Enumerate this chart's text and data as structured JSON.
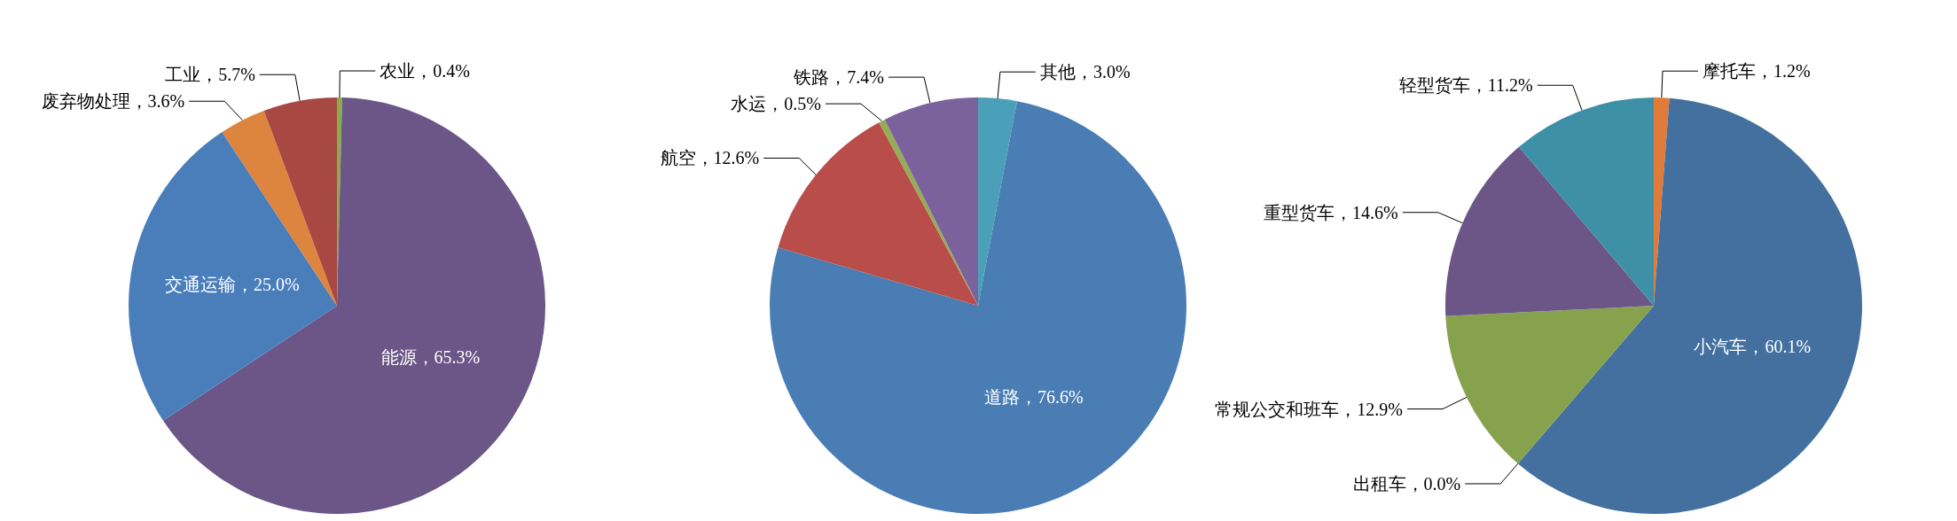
{
  "chart_data": [
    {
      "type": "pie",
      "categories": [
        "农业",
        "能源",
        "交通运输",
        "废弃物处理",
        "工业"
      ],
      "values": [
        0.4,
        65.3,
        25.0,
        3.6,
        5.7
      ],
      "colors": [
        "#8aac4a",
        "#6b5687",
        "#4a7ebb",
        "#dd843f",
        "#a84843"
      ],
      "value_labels": [
        "0.4%",
        "65.3%",
        "25.0%",
        "3.6%",
        "5.7%"
      ]
    },
    {
      "type": "pie",
      "categories": [
        "其他",
        "道路",
        "航空",
        "水运",
        "铁路"
      ],
      "values": [
        3.0,
        76.6,
        12.6,
        0.5,
        7.4
      ],
      "colors": [
        "#4aa0b8",
        "#4a7db4",
        "#b94d49",
        "#93ad55",
        "#7b629c"
      ],
      "value_labels": [
        "3.0%",
        "76.6%",
        "12.6%",
        "0.5%",
        "7.4%"
      ]
    },
    {
      "type": "pie",
      "categories": [
        "摩托车",
        "小汽车",
        "出租车",
        "常规公交和班车",
        "重型货车",
        "轻型货车"
      ],
      "values": [
        1.2,
        60.1,
        0.0,
        12.9,
        14.6,
        11.2
      ],
      "colors": [
        "#e07b39",
        "#43709f",
        "#d9d9d9",
        "#87a24d",
        "#6b5687",
        "#3e90a6"
      ],
      "value_labels": [
        "1.2%",
        "60.1%",
        "0.0%",
        "12.9%",
        "14.6%",
        "11.2%"
      ]
    }
  ]
}
